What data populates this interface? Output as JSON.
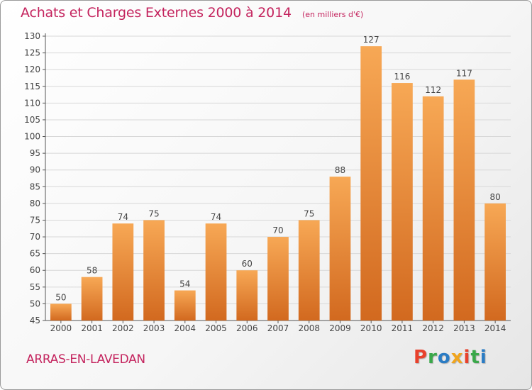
{
  "header": {
    "title": "Achats et Charges Externes 2000 à 2014",
    "subtitle": "(en milliers d'€)"
  },
  "footer": {
    "place_name": "ARRAS-EN-LAVEDAN",
    "brand": "Proxiti",
    "brand_colors": [
      "#e8412c",
      "#3aa84a",
      "#2b7cc4",
      "#f0a51e",
      "#e8412c",
      "#3aa84a",
      "#2b7cc4"
    ]
  },
  "colors": {
    "bar_light": "#f7a855",
    "bar_dark": "#d2691f",
    "axis": "#555555",
    "grid": "#d8d8d8",
    "title": "#c4245e"
  },
  "chart_data": {
    "type": "bar",
    "categories": [
      "2000",
      "2001",
      "2002",
      "2003",
      "2004",
      "2005",
      "2006",
      "2007",
      "2008",
      "2009",
      "2010",
      "2011",
      "2012",
      "2013",
      "2014"
    ],
    "values": [
      50,
      58,
      74,
      75,
      54,
      74,
      60,
      70,
      75,
      88,
      127,
      116,
      112,
      117,
      80
    ],
    "ylim": [
      45,
      130
    ],
    "yticks": [
      45,
      50,
      55,
      60,
      65,
      70,
      75,
      80,
      85,
      90,
      95,
      100,
      105,
      110,
      115,
      120,
      125,
      130
    ],
    "grid": true,
    "data_labels": true
  }
}
